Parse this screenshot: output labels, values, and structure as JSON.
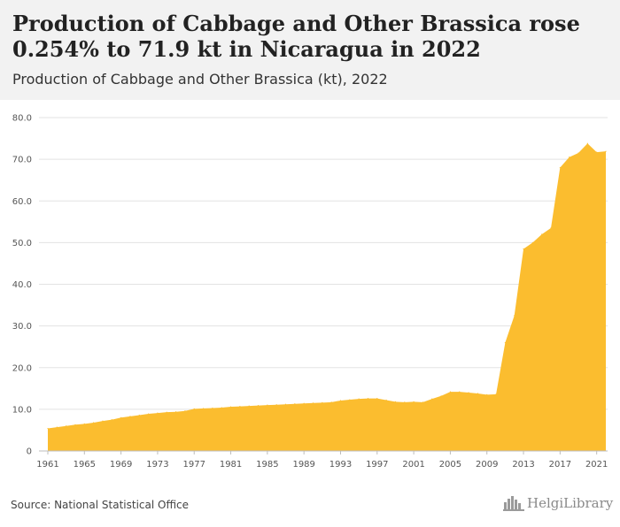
{
  "header": {
    "title": "Production of Cabbage and Other Brassica rose 0.254% to 71.9 kt in Nicaragua in 2022",
    "subtitle": "Production of Cabbage and Other Brassica (kt), 2022"
  },
  "footer": {
    "source": "Source: National Statistical Office",
    "logo_text": "HelgiLibrary",
    "logo_icon": "city-skyline-icon"
  },
  "chart_data": {
    "type": "area",
    "title": "Production of Cabbage and Other Brassica (kt), 2022",
    "xlabel": "",
    "ylabel": "",
    "ylim": [
      0,
      80
    ],
    "yticks": [
      0,
      10,
      20,
      30,
      40,
      50,
      60,
      70,
      80
    ],
    "ytick_labels": [
      "0",
      "10.0",
      "20.0",
      "30.0",
      "40.0",
      "50.0",
      "60.0",
      "70.0",
      "80.0"
    ],
    "xticks": [
      1961,
      1965,
      1969,
      1973,
      1977,
      1981,
      1985,
      1989,
      1993,
      1997,
      2001,
      2005,
      2009,
      2013,
      2017,
      2021
    ],
    "grid": true,
    "legend": "none",
    "color": "#fbbd2f",
    "x": [
      1961,
      1962,
      1963,
      1964,
      1965,
      1966,
      1967,
      1968,
      1969,
      1970,
      1971,
      1972,
      1973,
      1974,
      1975,
      1976,
      1977,
      1978,
      1979,
      1980,
      1981,
      1982,
      1983,
      1984,
      1985,
      1986,
      1987,
      1988,
      1989,
      1990,
      1991,
      1992,
      1993,
      1994,
      1995,
      1996,
      1997,
      1998,
      1999,
      2000,
      2001,
      2002,
      2003,
      2004,
      2005,
      2006,
      2007,
      2008,
      2009,
      2010,
      2011,
      2012,
      2013,
      2014,
      2015,
      2016,
      2017,
      2018,
      2019,
      2020,
      2021,
      2022
    ],
    "values": [
      5.4,
      5.7,
      6.0,
      6.3,
      6.5,
      6.8,
      7.2,
      7.5,
      8.0,
      8.3,
      8.6,
      8.9,
      9.1,
      9.3,
      9.4,
      9.6,
      10.1,
      10.2,
      10.3,
      10.4,
      10.6,
      10.7,
      10.8,
      10.9,
      11.0,
      11.1,
      11.2,
      11.3,
      11.4,
      11.5,
      11.6,
      11.7,
      12.1,
      12.3,
      12.5,
      12.6,
      12.6,
      12.2,
      11.8,
      11.7,
      11.8,
      11.7,
      12.5,
      13.2,
      14.2,
      14.2,
      14.0,
      13.8,
      13.5,
      13.6,
      26.0,
      32.5,
      48.5,
      50.0,
      52.0,
      53.5,
      68.0,
      70.5,
      71.5,
      73.8,
      71.7,
      71.9
    ]
  }
}
